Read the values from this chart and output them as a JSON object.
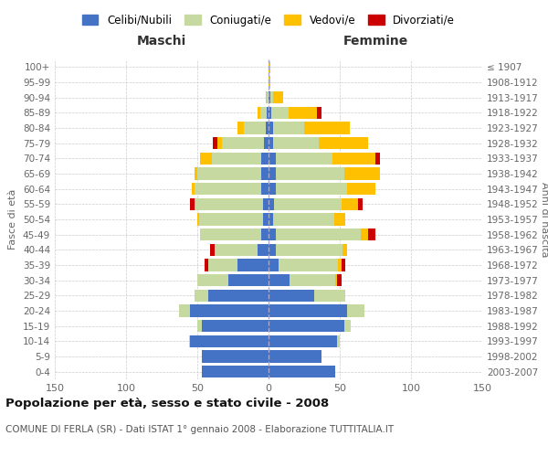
{
  "age_groups": [
    "0-4",
    "5-9",
    "10-14",
    "15-19",
    "20-24",
    "25-29",
    "30-34",
    "35-39",
    "40-44",
    "45-49",
    "50-54",
    "55-59",
    "60-64",
    "65-69",
    "70-74",
    "75-79",
    "80-84",
    "85-89",
    "90-94",
    "95-99",
    "100+"
  ],
  "birth_years": [
    "2003-2007",
    "1998-2002",
    "1993-1997",
    "1988-1992",
    "1983-1987",
    "1978-1982",
    "1973-1977",
    "1968-1972",
    "1963-1967",
    "1958-1962",
    "1953-1957",
    "1948-1952",
    "1943-1947",
    "1938-1942",
    "1933-1937",
    "1928-1932",
    "1923-1927",
    "1918-1922",
    "1913-1917",
    "1908-1912",
    "≤ 1907"
  ],
  "maschi": {
    "celibe": [
      47,
      47,
      55,
      47,
      55,
      42,
      28,
      22,
      8,
      5,
      4,
      4,
      5,
      5,
      5,
      3,
      2,
      1,
      0,
      0,
      0
    ],
    "coniugato": [
      0,
      0,
      1,
      3,
      8,
      10,
      22,
      20,
      30,
      43,
      45,
      47,
      47,
      45,
      35,
      30,
      15,
      5,
      1,
      0,
      0
    ],
    "vedovo": [
      0,
      0,
      0,
      0,
      0,
      0,
      0,
      0,
      0,
      0,
      1,
      1,
      2,
      2,
      8,
      3,
      5,
      2,
      1,
      0,
      0
    ],
    "divorziato": [
      0,
      0,
      0,
      0,
      0,
      0,
      0,
      3,
      3,
      0,
      0,
      3,
      0,
      0,
      0,
      3,
      0,
      0,
      0,
      0,
      0
    ]
  },
  "femmine": {
    "nubile": [
      47,
      37,
      48,
      53,
      55,
      32,
      15,
      7,
      5,
      5,
      3,
      4,
      5,
      5,
      5,
      3,
      3,
      2,
      1,
      0,
      0
    ],
    "coniugata": [
      0,
      0,
      2,
      5,
      12,
      22,
      32,
      42,
      47,
      60,
      43,
      47,
      50,
      48,
      40,
      32,
      22,
      12,
      2,
      0,
      0
    ],
    "vedova": [
      0,
      0,
      0,
      0,
      0,
      0,
      1,
      2,
      3,
      5,
      8,
      12,
      20,
      25,
      30,
      35,
      32,
      20,
      7,
      1,
      1
    ],
    "divorziata": [
      0,
      0,
      0,
      0,
      0,
      0,
      3,
      3,
      0,
      5,
      0,
      3,
      0,
      0,
      3,
      0,
      0,
      3,
      0,
      0,
      0
    ]
  },
  "colors": {
    "celibe": "#4472C4",
    "coniugato": "#C5D9A0",
    "vedovo": "#FFC000",
    "divorziato": "#CC0000"
  },
  "title": "Popolazione per età, sesso e stato civile - 2008",
  "subtitle": "COMUNE DI FERLA (SR) - Dati ISTAT 1° gennaio 2008 - Elaborazione TUTTITALIA.IT",
  "xlabel_left": "Maschi",
  "xlabel_right": "Femmine",
  "ylabel_left": "Fasce di età",
  "ylabel_right": "Anni di nascita",
  "xlim": 150,
  "legend_labels": [
    "Celibi/Nubili",
    "Coniugati/e",
    "Vedovi/e",
    "Divorziati/e"
  ],
  "background_color": "#ffffff",
  "grid_color": "#cccccc"
}
